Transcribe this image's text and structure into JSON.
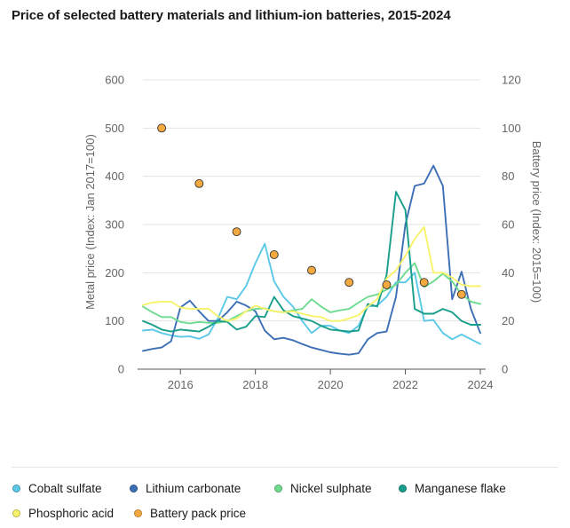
{
  "title": "Price of selected battery materials and lithium-ion batteries, 2015-2024",
  "chart_data": {
    "type": "line",
    "ylabel_left": "Metal price (Index: Jan 2017=100)",
    "ylabel_right": "Battery price (Index: 2015=100)",
    "xlim": [
      2015,
      2024
    ],
    "ylim_left": [
      0,
      600
    ],
    "ylim_right": [
      0,
      120
    ],
    "x_ticks": [
      "2016",
      "2018",
      "2020",
      "2022",
      "2024"
    ],
    "y_ticks_left": [
      "0",
      "100",
      "200",
      "300",
      "400",
      "500",
      "600"
    ],
    "y_ticks_right": [
      "0",
      "20",
      "40",
      "60",
      "80",
      "100",
      "120"
    ],
    "grid": "horizontal",
    "legend_position": "bottom",
    "series": [
      {
        "name": "Cobalt sulfate",
        "color": "#5bc8e8",
        "type": "line",
        "axis": "left",
        "x": [
          2015.0,
          2015.25,
          2015.5,
          2015.75,
          2016.0,
          2016.25,
          2016.5,
          2016.75,
          2017.0,
          2017.25,
          2017.5,
          2017.75,
          2018.0,
          2018.25,
          2018.5,
          2018.75,
          2019.0,
          2019.25,
          2019.5,
          2019.75,
          2020.0,
          2020.25,
          2020.5,
          2020.75,
          2021.0,
          2021.25,
          2021.5,
          2021.75,
          2022.0,
          2022.25,
          2022.5,
          2022.75,
          2023.0,
          2023.25,
          2023.5,
          2023.75,
          2024.0
        ],
        "y": [
          80,
          82,
          75,
          70,
          67,
          68,
          63,
          72,
          105,
          150,
          145,
          172,
          220,
          260,
          182,
          150,
          130,
          100,
          75,
          90,
          90,
          80,
          75,
          90,
          130,
          132,
          150,
          180,
          180,
          200,
          100,
          102,
          75,
          62,
          72,
          62,
          52
        ]
      },
      {
        "name": "Lithium carbonate",
        "color": "#3d6fb6",
        "type": "line",
        "axis": "left",
        "x": [
          2015.0,
          2015.25,
          2015.5,
          2015.75,
          2016.0,
          2016.25,
          2016.5,
          2016.75,
          2017.0,
          2017.25,
          2017.5,
          2017.75,
          2018.0,
          2018.25,
          2018.5,
          2018.75,
          2019.0,
          2019.25,
          2019.5,
          2019.75,
          2020.0,
          2020.25,
          2020.5,
          2020.75,
          2021.0,
          2021.25,
          2021.5,
          2021.75,
          2022.0,
          2022.25,
          2022.5,
          2022.75,
          2023.0,
          2023.25,
          2023.5,
          2023.75,
          2024.0
        ],
        "y": [
          38,
          42,
          45,
          58,
          128,
          142,
          120,
          100,
          100,
          118,
          140,
          132,
          120,
          80,
          62,
          65,
          60,
          52,
          45,
          40,
          35,
          32,
          30,
          33,
          62,
          75,
          78,
          150,
          300,
          380,
          385,
          422,
          380,
          145,
          202,
          125,
          75
        ]
      },
      {
        "name": "Nickel sulphate",
        "color": "#6edb8f",
        "type": "line",
        "axis": "left",
        "x": [
          2015.0,
          2015.25,
          2015.5,
          2015.75,
          2016.0,
          2016.25,
          2016.5,
          2016.75,
          2017.0,
          2017.25,
          2017.5,
          2017.75,
          2018.0,
          2018.25,
          2018.5,
          2018.75,
          2019.0,
          2019.25,
          2019.5,
          2019.75,
          2020.0,
          2020.25,
          2020.5,
          2020.75,
          2021.0,
          2021.25,
          2021.5,
          2021.75,
          2022.0,
          2022.25,
          2022.5,
          2022.75,
          2023.0,
          2023.25,
          2023.5,
          2023.75,
          2024.0
        ],
        "y": [
          130,
          118,
          108,
          108,
          98,
          95,
          98,
          96,
          96,
          100,
          110,
          120,
          125,
          126,
          120,
          118,
          122,
          125,
          145,
          130,
          118,
          122,
          125,
          138,
          150,
          155,
          165,
          175,
          200,
          220,
          170,
          182,
          198,
          182,
          155,
          140,
          135
        ]
      },
      {
        "name": "Manganese flake",
        "color": "#1a9e8c",
        "type": "line",
        "axis": "left",
        "x": [
          2015.0,
          2015.25,
          2015.5,
          2015.75,
          2016.0,
          2016.25,
          2016.5,
          2016.75,
          2017.0,
          2017.25,
          2017.5,
          2017.75,
          2018.0,
          2018.25,
          2018.5,
          2018.75,
          2019.0,
          2019.25,
          2019.5,
          2019.75,
          2020.0,
          2020.25,
          2020.5,
          2020.75,
          2021.0,
          2021.25,
          2021.5,
          2021.75,
          2022.0,
          2022.25,
          2022.5,
          2022.75,
          2023.0,
          2023.25,
          2023.5,
          2023.75,
          2024.0
        ],
        "y": [
          100,
          92,
          82,
          78,
          82,
          80,
          78,
          88,
          100,
          98,
          82,
          88,
          110,
          108,
          150,
          122,
          110,
          105,
          100,
          90,
          82,
          80,
          78,
          80,
          135,
          130,
          195,
          368,
          330,
          125,
          115,
          115,
          125,
          118,
          100,
          92,
          92
        ]
      },
      {
        "name": "Phosphoric acid",
        "color": "#f8f36a",
        "type": "line",
        "axis": "left",
        "x": [
          2015.0,
          2015.25,
          2015.5,
          2015.75,
          2016.0,
          2016.25,
          2016.5,
          2016.75,
          2017.0,
          2017.25,
          2017.5,
          2017.75,
          2018.0,
          2018.25,
          2018.5,
          2018.75,
          2019.0,
          2019.25,
          2019.5,
          2019.75,
          2020.0,
          2020.25,
          2020.5,
          2020.75,
          2021.0,
          2021.25,
          2021.5,
          2021.75,
          2022.0,
          2022.25,
          2022.5,
          2022.75,
          2023.0,
          2023.25,
          2023.5,
          2023.75,
          2024.0
        ],
        "y": [
          133,
          138,
          140,
          140,
          128,
          125,
          125,
          125,
          110,
          100,
          105,
          120,
          132,
          125,
          120,
          118,
          120,
          115,
          110,
          108,
          100,
          100,
          105,
          112,
          130,
          145,
          188,
          205,
          235,
          270,
          295,
          200,
          200,
          190,
          175,
          172,
          172
        ]
      },
      {
        "name": "Battery pack price",
        "color": "#f4a93f",
        "type": "scatter",
        "axis": "right",
        "x": [
          2015.5,
          2016.5,
          2017.5,
          2018.5,
          2019.5,
          2020.5,
          2021.5,
          2022.5,
          2023.5
        ],
        "y": [
          100,
          77,
          57,
          47.5,
          41,
          36,
          35,
          36,
          31
        ]
      }
    ]
  }
}
